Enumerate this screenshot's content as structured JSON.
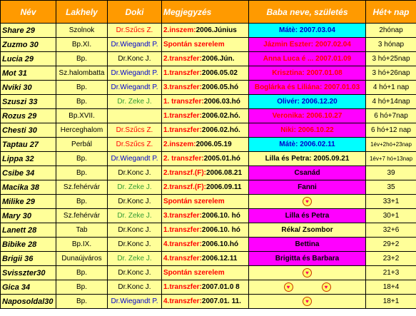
{
  "headers": [
    "Név",
    "Lakhely",
    "Doki",
    "Megjegyzés",
    "Baba neve, születés",
    "Hét+ nap"
  ],
  "colors": {
    "header_bg": "#ff9a00",
    "row_bg": "#ffff99",
    "baba_cyan": "#00ffff",
    "baba_magenta": "#ff00ff",
    "baba_yellow": "#ffff99",
    "red": "#ff0000",
    "green": "#339933",
    "blue": "#0000cc",
    "black": "#000000"
  },
  "rows": [
    {
      "nev": "Share 29",
      "lakhely": "Szolnok",
      "doki": "Dr.Szűcs Z.",
      "doki_color": "red",
      "megj_pre": "2.inszem:",
      "megj_rest": "2006.Június",
      "megj_color": "red",
      "baba": "Mátè: 2007.03.04",
      "baba_bg": "cyan",
      "baba_color": "blue",
      "het": "2hónap"
    },
    {
      "nev": "Zuzmo 30",
      "lakhely": "Bp.XI.",
      "doki": "Dr.Wiegandt P.",
      "doki_color": "blue",
      "megj_pre": "Spontán szerelem",
      "megj_rest": "",
      "megj_color": "red",
      "baba": "Jázmin Eszter: 2007.02.04",
      "baba_bg": "magenta",
      "baba_color": "red",
      "het": "3 hónap"
    },
    {
      "nev": "Lucia 29",
      "lakhely": "Bp.",
      "doki": "Dr.Konc J.",
      "doki_color": "black",
      "megj_pre": "2.transzfer:",
      "megj_rest": "2006.Jún.",
      "megj_color": "red",
      "baba": "Anna Luca é ... 2007.01.09",
      "baba_bg": "magenta",
      "baba_color": "red",
      "het": "3 hó+25nap"
    },
    {
      "nev": "Mot 31",
      "lakhely": "Sz.halombatta",
      "doki": "Dr.Wiegandt P.",
      "doki_color": "blue",
      "megj_pre": "1.transzfer:",
      "megj_rest": "2006.05.02",
      "megj_color": "red",
      "baba": "Krisztina: 2007.01.08",
      "baba_bg": "magenta",
      "baba_color": "red",
      "het": "3 hó+26nap"
    },
    {
      "nev": "Nviki 30",
      "lakhely": "Bp.",
      "doki": "Dr.Wiegandt P.",
      "doki_color": "blue",
      "megj_pre": "3.transzfer:",
      "megj_rest": "2006.05.hó",
      "megj_color": "red",
      "baba": "Boglárka és Liliána: 2007.01.03",
      "baba_bg": "magenta",
      "baba_color": "red",
      "het": "4 hó+1 nap"
    },
    {
      "nev": "Szuszi 33",
      "lakhely": "Bp.",
      "doki": "Dr. Zeke J.",
      "doki_color": "green",
      "megj_pre": "1. transzfer:",
      "megj_rest": "2006.03.hó",
      "megj_color": "red",
      "baba": "Olivér: 2006.12.20",
      "baba_bg": "cyan",
      "baba_color": "blue",
      "het": "4 hó+14nap"
    },
    {
      "nev": "Rozus 29",
      "lakhely": "Bp.XVII.",
      "doki": "",
      "doki_color": "black",
      "megj_pre": "1.transzfer:",
      "megj_rest": "2006.02.hó.",
      "megj_color": "red",
      "baba": "Veronika: 2006.10.27",
      "baba_bg": "magenta",
      "baba_color": "red",
      "het": "6 hó+7nap"
    },
    {
      "nev": "Chesti 30",
      "lakhely": "Herceghalom",
      "doki": "Dr.Szűcs Z.",
      "doki_color": "red",
      "megj_pre": "1.transzfer:",
      "megj_rest": "2006.02.hó.",
      "megj_color": "red",
      "baba": "Niki: 2006.10.22",
      "baba_bg": "magenta",
      "baba_color": "red",
      "het": "6 hó+12 nap"
    },
    {
      "nev": "Taptau 27",
      "lakhely": "Perbál",
      "doki": "Dr.Szűcs Z.",
      "doki_color": "red",
      "megj_pre": "2.inszem:",
      "megj_rest": "2006.05.19",
      "megj_color": "red",
      "baba": "Mátè: 2006.02.11",
      "baba_bg": "cyan",
      "baba_color": "blue",
      "het": "1év+2hó+23nap",
      "het_small": true
    },
    {
      "nev": "Lippa 32",
      "lakhely": "Bp.",
      "doki": "Dr.Wiegandt P.",
      "doki_color": "blue",
      "megj_pre": "2. transzfer:",
      "megj_rest": "2005.01.hó",
      "megj_color": "red",
      "baba": "Lilla és Petra: 2005.09.21",
      "baba_bg": "yellow",
      "baba_color": "black",
      "het": "1év+7 hó+13nap",
      "het_small": true
    },
    {
      "nev": "Csibe 34",
      "lakhely": "Bp.",
      "doki": "Dr.Konc J.",
      "doki_color": "black",
      "megj_pre": "2.transzf.(F):",
      "megj_rest": "2006.08.21",
      "megj_color": "red",
      "baba": "Csanád",
      "baba_bg": "magenta",
      "baba_color": "black",
      "het": "39"
    },
    {
      "nev": "Macika 38",
      "lakhely": "Sz.fehérvár",
      "doki": "Dr. Zeke J.",
      "doki_color": "green",
      "megj_pre": "2.transzf.(F):",
      "megj_rest": "2006.09.11",
      "megj_color": "red",
      "baba": "Fanni",
      "baba_bg": "magenta",
      "baba_color": "black",
      "het": "35"
    },
    {
      "nev": "Milike 29",
      "lakhely": "Bp.",
      "doki": "Dr.Konc J.",
      "doki_color": "black",
      "megj_pre": "Spontán szerelem",
      "megj_rest": "",
      "megj_color": "red",
      "baba": "",
      "baba_bg": "yellow",
      "baba_color": "black",
      "baba_hearts": 1,
      "het": "33+1"
    },
    {
      "nev": "Mary 30",
      "lakhely": "Sz.fehérvár",
      "doki": "Dr. Zeke J.",
      "doki_color": "green",
      "megj_pre": "3.transzfer:",
      "megj_rest": "2006.10. hó",
      "megj_color": "red",
      "baba": "Lilla és Petra",
      "baba_bg": "magenta",
      "baba_color": "black",
      "het": "30+1"
    },
    {
      "nev": "Lanett 28",
      "lakhely": "Tab",
      "doki": "Dr.Konc J.",
      "doki_color": "black",
      "megj_pre": "1.transzfer:",
      "megj_rest": "2006.10. hó",
      "megj_color": "red",
      "baba": "Réka/  Zsombor",
      "baba_bg": "yellow",
      "baba_color": "black",
      "het": "32+6"
    },
    {
      "nev": "Bibike 28",
      "lakhely": "Bp.IX.",
      "doki": "Dr.Konc J.",
      "doki_color": "black",
      "megj_pre": "4.transzfer:",
      "megj_rest": "2006.10.hó",
      "megj_color": "red",
      "baba": "Bettina",
      "baba_bg": "magenta",
      "baba_color": "black",
      "het": "29+2"
    },
    {
      "nev": "Brigii 36",
      "lakhely": "Dunaújváros",
      "doki": "Dr. Zeke J.",
      "doki_color": "green",
      "megj_pre": "4.transzfer:",
      "megj_rest": "2006.12.11",
      "megj_color": "red",
      "baba": "Brigitta és Barbara",
      "baba_bg": "magenta",
      "baba_color": "black",
      "het": "23+2"
    },
    {
      "nev": "Svisszter30",
      "lakhely": "Bp.",
      "doki": "Dr.Konc J.",
      "doki_color": "black",
      "megj_pre": "Spontán szerelem",
      "megj_rest": "",
      "megj_color": "red",
      "baba": "",
      "baba_bg": "yellow",
      "baba_color": "black",
      "baba_hearts": 1,
      "het": "21+3"
    },
    {
      "nev": "Gica  34",
      "lakhely": "Bp.",
      "doki": "Dr.Konc J.",
      "doki_color": "black",
      "megj_pre": "1.transzfer:",
      "megj_rest": "2007.01.0 8",
      "megj_color": "red",
      "baba": "",
      "baba_bg": "yellow",
      "baba_color": "black",
      "baba_hearts": 2,
      "het": "18+4"
    },
    {
      "nev": "Naposoldal30",
      "lakhely": "Bp.",
      "doki": "Dr.Wiegandt P.",
      "doki_color": "blue",
      "megj_pre": "4.transzfer:",
      "megj_rest": "2007.01. 11.",
      "megj_color": "red",
      "baba": "",
      "baba_bg": "yellow",
      "baba_color": "black",
      "baba_hearts": 1,
      "het": "18+1"
    }
  ]
}
